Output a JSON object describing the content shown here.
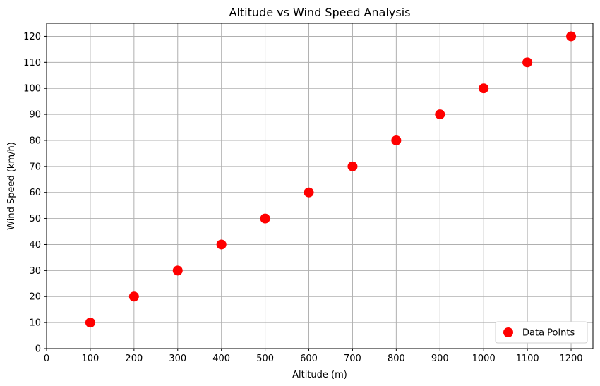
{
  "chart_data": {
    "type": "scatter",
    "title": "Altitude vs Wind Speed Analysis",
    "xlabel": "Altitude (m)",
    "ylabel": "Wind Speed (km/h)",
    "xlim": [
      0,
      1250
    ],
    "ylim": [
      0,
      125
    ],
    "xticks": [
      0,
      100,
      200,
      300,
      400,
      500,
      600,
      700,
      800,
      900,
      1000,
      1100,
      1200
    ],
    "yticks": [
      0,
      10,
      20,
      30,
      40,
      50,
      60,
      70,
      80,
      90,
      100,
      110,
      120
    ],
    "grid": true,
    "legend_position": "lower-right",
    "series": [
      {
        "name": "Data Points",
        "color": "#ff0000",
        "x": [
          100,
          200,
          300,
          400,
          500,
          600,
          700,
          800,
          900,
          1000,
          1100,
          1200
        ],
        "y": [
          10,
          20,
          30,
          40,
          50,
          60,
          70,
          80,
          90,
          100,
          110,
          120
        ]
      }
    ]
  }
}
